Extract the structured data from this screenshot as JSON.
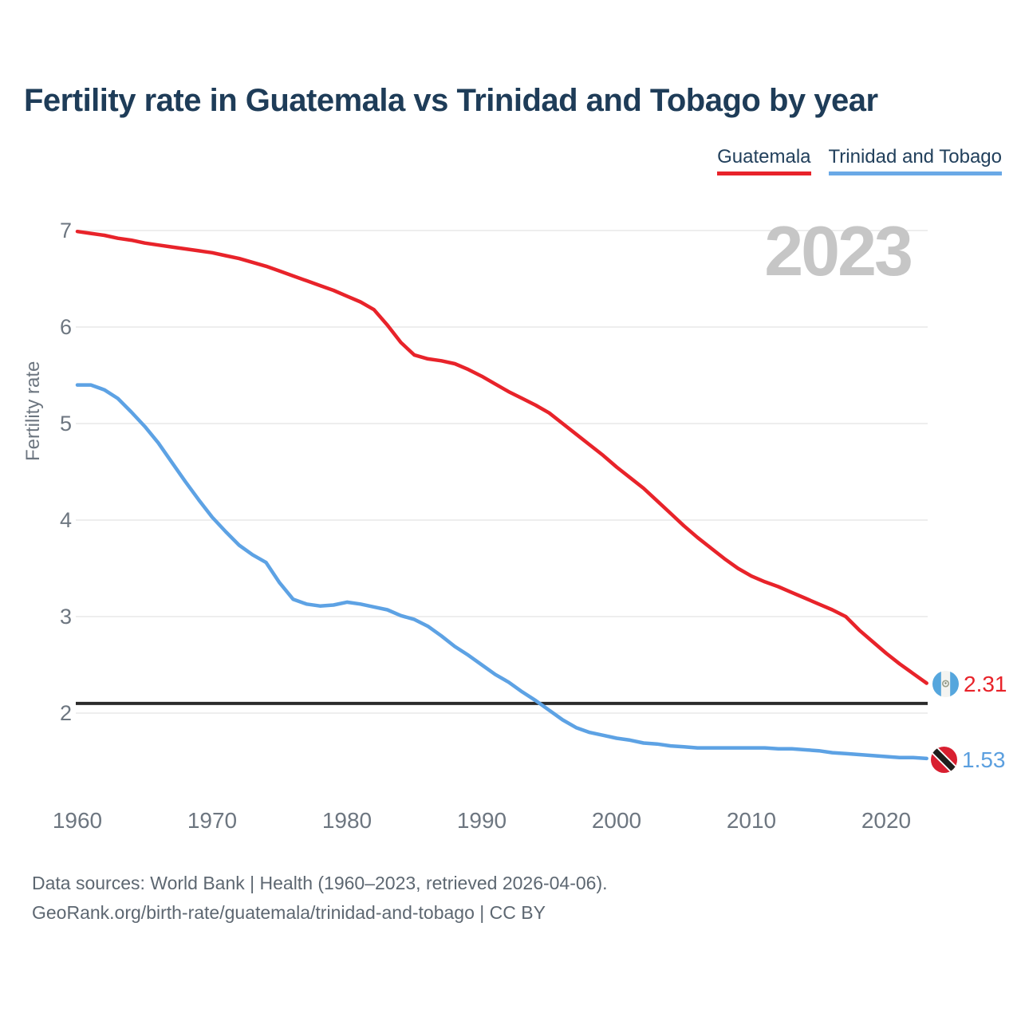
{
  "title": "Fertility rate in Guatemala vs Trinidad and Tobago by year",
  "legend": {
    "items": [
      {
        "label": "Guatemala",
        "color": "#e8232a"
      },
      {
        "label": "Trinidad and Tobago",
        "color": "#6aa9e6"
      }
    ]
  },
  "watermark": "2023",
  "y_axis": {
    "label": "Fertility rate",
    "ticks": [
      7,
      6,
      5,
      4,
      3,
      2
    ]
  },
  "x_axis": {
    "ticks": [
      1960,
      1970,
      1980,
      1990,
      2000,
      2010,
      2020
    ]
  },
  "reference_line": {
    "value": 2.1,
    "color": "#2b2b2b"
  },
  "endpoints": [
    {
      "country": "Guatemala",
      "value": "2.31",
      "color": "#e8232a",
      "flag": "guatemala-flag"
    },
    {
      "country": "Trinidad and Tobago",
      "value": "1.53",
      "color": "#5b9fdf",
      "flag": "trinidad-and-tobago-flag"
    }
  ],
  "footer": {
    "line1": "Data sources: World Bank | Health (1960–2023, retrieved 2026-04-06).",
    "line2": "GeoRank.org/birth-rate/guatemala/trinidad-and-tobago | CC BY"
  },
  "chart_data": {
    "type": "line",
    "title": "Fertility rate in Guatemala vs Trinidad and Tobago by year",
    "xlabel": "",
    "ylabel": "Fertility rate",
    "xlim": [
      1960,
      2023
    ],
    "ylim": [
      1.3,
      7.2
    ],
    "grid": "horizontal",
    "legend_position": "top-right",
    "reference_line_y": 2.1,
    "x": [
      1960,
      1961,
      1962,
      1963,
      1964,
      1965,
      1966,
      1967,
      1968,
      1969,
      1970,
      1971,
      1972,
      1973,
      1974,
      1975,
      1976,
      1977,
      1978,
      1979,
      1980,
      1981,
      1982,
      1983,
      1984,
      1985,
      1986,
      1987,
      1988,
      1989,
      1990,
      1991,
      1992,
      1993,
      1994,
      1995,
      1996,
      1997,
      1998,
      1999,
      2000,
      2001,
      2002,
      2003,
      2004,
      2005,
      2006,
      2007,
      2008,
      2009,
      2010,
      2011,
      2012,
      2013,
      2014,
      2015,
      2016,
      2017,
      2018,
      2019,
      2020,
      2021,
      2022,
      2023
    ],
    "series": [
      {
        "name": "Guatemala",
        "color": "#e8232a",
        "end_label": "2.31",
        "values": [
          6.99,
          6.97,
          6.95,
          6.92,
          6.9,
          6.87,
          6.85,
          6.83,
          6.81,
          6.79,
          6.77,
          6.74,
          6.71,
          6.67,
          6.63,
          6.58,
          6.53,
          6.48,
          6.43,
          6.38,
          6.32,
          6.26,
          6.18,
          6.02,
          5.84,
          5.71,
          5.67,
          5.65,
          5.62,
          5.56,
          5.49,
          5.41,
          5.33,
          5.26,
          5.19,
          5.11,
          5.0,
          4.89,
          4.78,
          4.67,
          4.55,
          4.44,
          4.33,
          4.2,
          4.07,
          3.94,
          3.82,
          3.71,
          3.6,
          3.5,
          3.42,
          3.36,
          3.31,
          3.25,
          3.19,
          3.13,
          3.07,
          3.0,
          2.86,
          2.74,
          2.62,
          2.51,
          2.41,
          2.31
        ]
      },
      {
        "name": "Trinidad and Tobago",
        "color": "#5da2e4",
        "end_label": "1.53",
        "values": [
          5.4,
          5.4,
          5.35,
          5.26,
          5.12,
          4.97,
          4.8,
          4.6,
          4.4,
          4.21,
          4.03,
          3.88,
          3.74,
          3.64,
          3.56,
          3.35,
          3.18,
          3.13,
          3.11,
          3.12,
          3.15,
          3.13,
          3.1,
          3.07,
          3.01,
          2.97,
          2.9,
          2.8,
          2.69,
          2.6,
          2.5,
          2.4,
          2.32,
          2.22,
          2.13,
          2.03,
          1.93,
          1.85,
          1.8,
          1.77,
          1.74,
          1.72,
          1.69,
          1.68,
          1.66,
          1.65,
          1.64,
          1.64,
          1.64,
          1.64,
          1.64,
          1.64,
          1.63,
          1.63,
          1.62,
          1.61,
          1.59,
          1.58,
          1.57,
          1.56,
          1.55,
          1.54,
          1.54,
          1.53
        ]
      }
    ]
  }
}
